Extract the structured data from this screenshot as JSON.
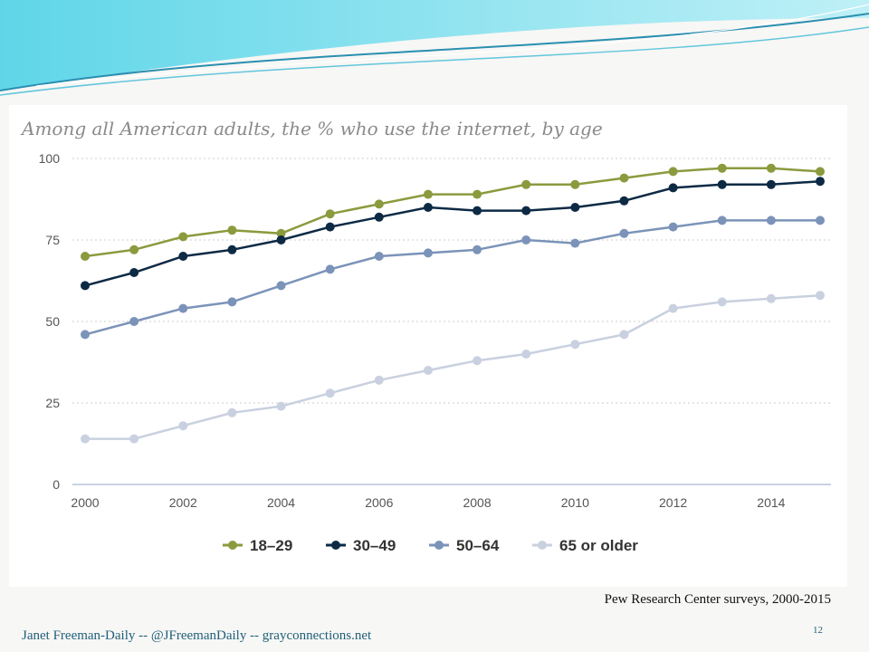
{
  "chart_data": {
    "type": "line",
    "title": "Among all American adults, the % who use the internet, by age",
    "xlabel": "",
    "ylabel": "",
    "x": [
      2000,
      2001,
      2002,
      2003,
      2004,
      2005,
      2006,
      2007,
      2008,
      2009,
      2010,
      2011,
      2012,
      2013,
      2014,
      2015
    ],
    "x_ticks": [
      "2000",
      "2002",
      "2004",
      "2006",
      "2008",
      "2010",
      "2012",
      "2014"
    ],
    "y_ticks": [
      "0",
      "25",
      "50",
      "75",
      "100"
    ],
    "ylim": [
      0,
      100
    ],
    "grid": "horizontal dotted",
    "legend_position": "bottom",
    "series": [
      {
        "name": "18–29",
        "color": "#8c9a3e",
        "values": [
          70,
          72,
          76,
          78,
          77,
          83,
          86,
          89,
          89,
          92,
          92,
          94,
          96,
          97,
          97,
          96
        ]
      },
      {
        "name": "30–49",
        "color": "#0d2a45",
        "values": [
          61,
          65,
          70,
          72,
          75,
          79,
          82,
          85,
          84,
          84,
          85,
          87,
          91,
          92,
          92,
          93
        ]
      },
      {
        "name": "50–64",
        "color": "#7b93b8",
        "values": [
          46,
          50,
          54,
          56,
          61,
          66,
          70,
          71,
          72,
          75,
          74,
          77,
          79,
          81,
          81,
          81
        ]
      },
      {
        "name": "65 or older",
        "color": "#c9d0df",
        "values": [
          14,
          14,
          18,
          22,
          24,
          28,
          32,
          35,
          38,
          40,
          43,
          46,
          54,
          56,
          57,
          58
        ]
      }
    ]
  },
  "source": "Pew Research Center surveys, 2000-2015",
  "footer": "Janet Freeman-Daily  -- @JFreemanDaily --  grayconnections.net",
  "page_number": "12"
}
